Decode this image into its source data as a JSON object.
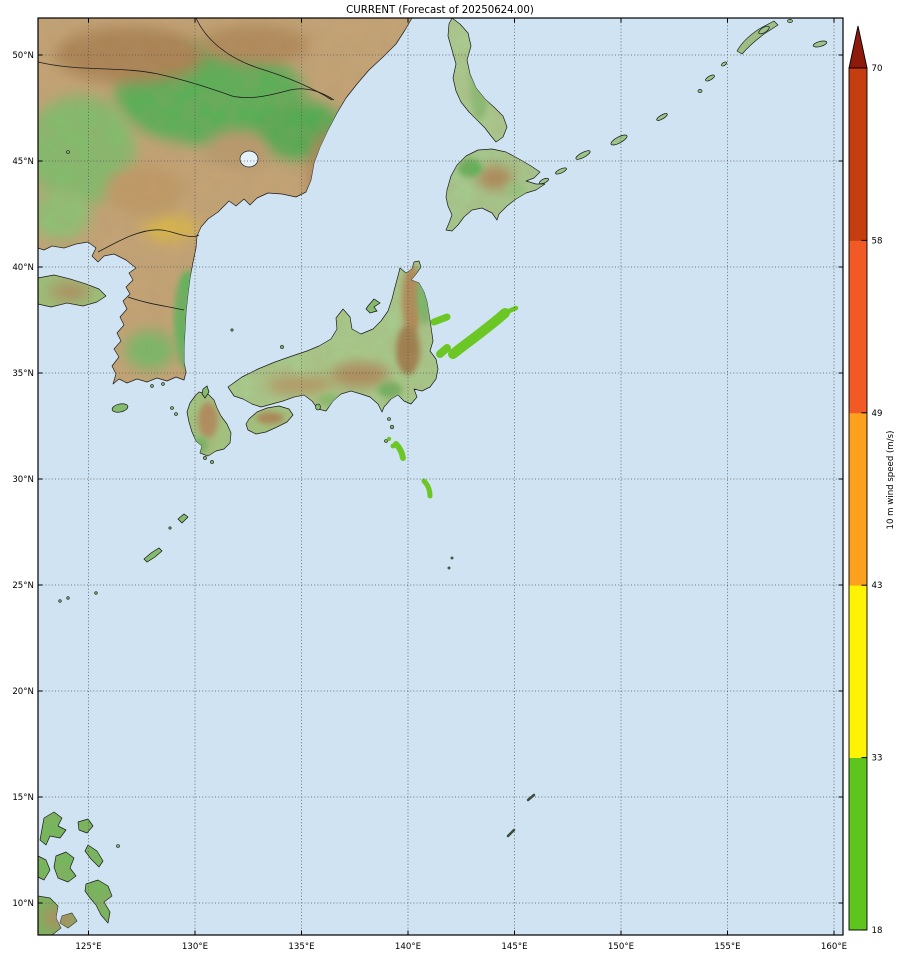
{
  "title": "CURRENT (Forecast of 20250624.00)",
  "axes": {
    "lat_labels": [
      "50°N",
      "45°N",
      "40°N",
      "35°N",
      "30°N",
      "25°N",
      "20°N",
      "15°N",
      "10°N"
    ],
    "lon_labels": [
      "125°E",
      "130°E",
      "135°E",
      "140°E",
      "145°E",
      "150°E",
      "155°E",
      "160°E"
    ]
  },
  "colorbar": {
    "axis_label": "10 m wind speed (m/s)",
    "tick_labels": [
      "18",
      "33",
      "43",
      "49",
      "58",
      "70"
    ],
    "levels": [
      18,
      33,
      43,
      49,
      58,
      70
    ],
    "segment_colors": [
      "#5ec41e",
      "#fdf303",
      "#fca01d",
      "#f15a25",
      "#c63e10"
    ],
    "over_color": "#8e1a0b"
  },
  "colors": {
    "ocean": "#cfe3f2",
    "grid": "#555555",
    "frame": "#000000",
    "coastline": "#141414",
    "wind_patch": "#6cc724",
    "lake": "#e4f0fa"
  },
  "chart_data": {
    "type": "map",
    "title": "CURRENT (Forecast of 20250624.00)",
    "variable": "10 m wind speed (m/s)",
    "colorbar_levels": [
      18,
      33,
      43,
      49,
      58,
      70
    ],
    "lat_ticks_deg_n": [
      50,
      45,
      40,
      35,
      30,
      25,
      20,
      15,
      10
    ],
    "lon_ticks_deg_e": [
      125,
      130,
      135,
      140,
      145,
      150,
      155,
      160
    ],
    "grid": "dotted",
    "legend_position": "right colorbar with over-arrow",
    "shaded_wind_areas": [
      {
        "value_range_ms": "18-33",
        "approx_lon_e": 143.3,
        "approx_lat_n": 36.9,
        "shape": "elongated band running SW-NE east of northern Honshu"
      },
      {
        "value_range_ms": "18-33",
        "approx_lon_e": 141.6,
        "approx_lat_n": 37.4,
        "shape": "small blob"
      },
      {
        "value_range_ms": "18-33",
        "approx_lon_e": 141.7,
        "approx_lat_n": 36.0,
        "shape": "small blob"
      },
      {
        "value_range_ms": "18-33",
        "approx_lon_e": 144.9,
        "approx_lat_n": 38.0,
        "shape": "tiny sliver"
      },
      {
        "value_range_ms": "18-33",
        "approx_lon_e": 139.5,
        "approx_lat_n": 31.4,
        "shape": "small crescent along Izu island chain"
      },
      {
        "value_range_ms": "18-33",
        "approx_lon_e": 140.9,
        "approx_lat_n": 29.6,
        "shape": "small crescent"
      }
    ]
  }
}
